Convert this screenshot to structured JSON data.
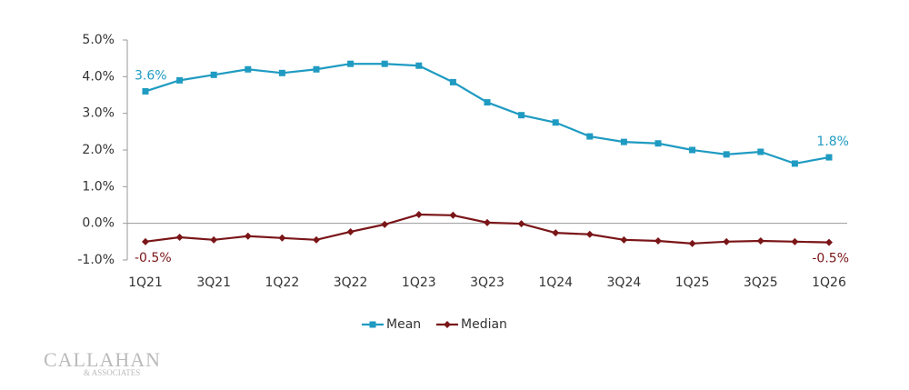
{
  "chart_data": {
    "type": "line",
    "categories": [
      "1Q21",
      null,
      "3Q21",
      null,
      "1Q22",
      null,
      "3Q22",
      null,
      "1Q23",
      null,
      "3Q23",
      null,
      "1Q24",
      null,
      "3Q24",
      null,
      "1Q25",
      null,
      "3Q25",
      null,
      "1Q26"
    ],
    "series": [
      {
        "name": "Mean",
        "color": "#1f9bc2",
        "marker": "square",
        "values": [
          3.6,
          3.9,
          4.05,
          4.2,
          4.1,
          4.2,
          4.35,
          4.35,
          4.3,
          3.85,
          3.3,
          2.95,
          2.75,
          2.37,
          2.22,
          2.18,
          2.0,
          1.88,
          1.95,
          1.63,
          1.8
        ],
        "value_labels": [
          "3.6%",
          null,
          null,
          null,
          null,
          null,
          null,
          null,
          null,
          null,
          null,
          null,
          null,
          null,
          null,
          null,
          null,
          null,
          null,
          null,
          "1.8%"
        ]
      },
      {
        "name": "Median",
        "color": "#7a1518",
        "marker": "diamond",
        "values": [
          -0.5,
          -0.38,
          -0.45,
          -0.35,
          -0.4,
          -0.45,
          -0.23,
          -0.03,
          0.24,
          0.22,
          0.02,
          -0.01,
          -0.26,
          -0.3,
          -0.45,
          -0.48,
          -0.55,
          -0.5,
          -0.48,
          -0.5,
          -0.52
        ],
        "value_labels": [
          "-0.5%",
          null,
          null,
          null,
          null,
          null,
          null,
          null,
          null,
          null,
          null,
          null,
          null,
          null,
          null,
          null,
          null,
          null,
          null,
          null,
          "-0.5%"
        ]
      }
    ],
    "ylim": [
      -1,
      5
    ],
    "yticks": [
      {
        "value": -1,
        "label": "-1.0%"
      },
      {
        "value": 0,
        "label": "0.0%"
      },
      {
        "value": 1,
        "label": "1.0%"
      },
      {
        "value": 2,
        "label": "2.0%"
      },
      {
        "value": 3,
        "label": "3.0%"
      },
      {
        "value": 4,
        "label": "4.0%"
      },
      {
        "value": 5,
        "label": "5.0%"
      }
    ],
    "grid": false,
    "legend": "bottom"
  },
  "logo": {
    "name": "CALLAHAN",
    "sub": "& ASSOCIATES"
  }
}
